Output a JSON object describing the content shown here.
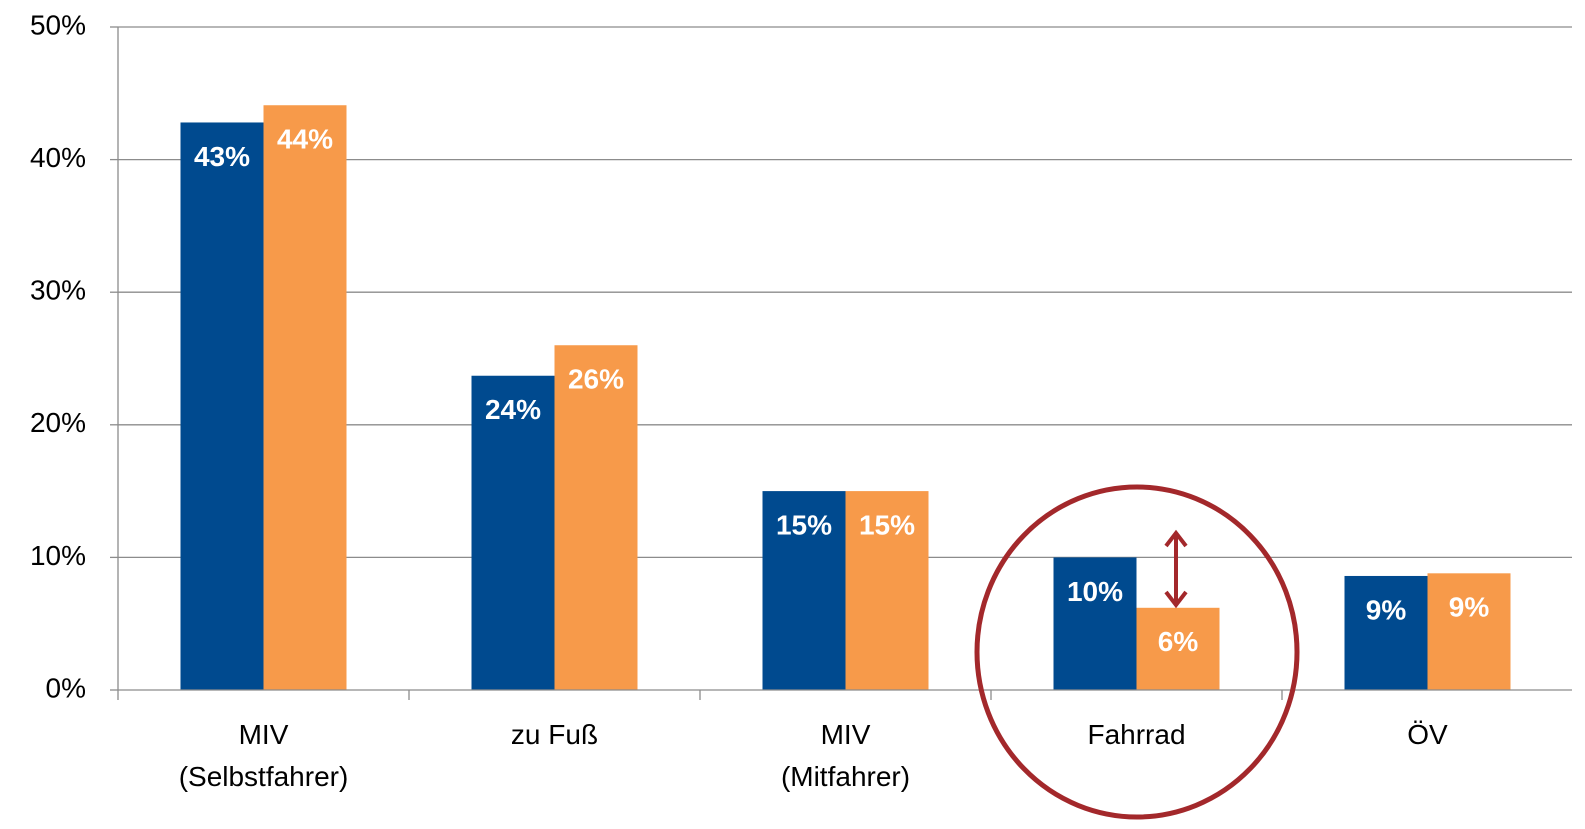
{
  "chart_data": {
    "type": "bar",
    "categories": [
      "MIV\n(Selbstfahrer)",
      "zu Fuß",
      "MIV\n(Mitfahrer)",
      "Fahrrad",
      "ÖV"
    ],
    "series": [
      {
        "color": "#004a8f",
        "values": [
          42.8,
          23.7,
          15.0,
          10.0,
          8.6
        ],
        "value_labels": [
          "43%",
          "24%",
          "15%",
          "10%",
          "9%"
        ]
      },
      {
        "color": "#f79a4a",
        "values": [
          44.1,
          26.0,
          15.0,
          6.2,
          8.8
        ],
        "value_labels": [
          "44%",
          "26%",
          "15%",
          "6%",
          "9%"
        ]
      }
    ],
    "ylim": [
      0,
      50
    ],
    "yticks": [
      {
        "value": 0,
        "label": "0%"
      },
      {
        "value": 10,
        "label": "10%"
      },
      {
        "value": 20,
        "label": "20%"
      },
      {
        "value": 30,
        "label": "30%"
      },
      {
        "value": 40,
        "label": "40%"
      },
      {
        "value": 50,
        "label": "50%"
      }
    ],
    "grid": true
  }
}
